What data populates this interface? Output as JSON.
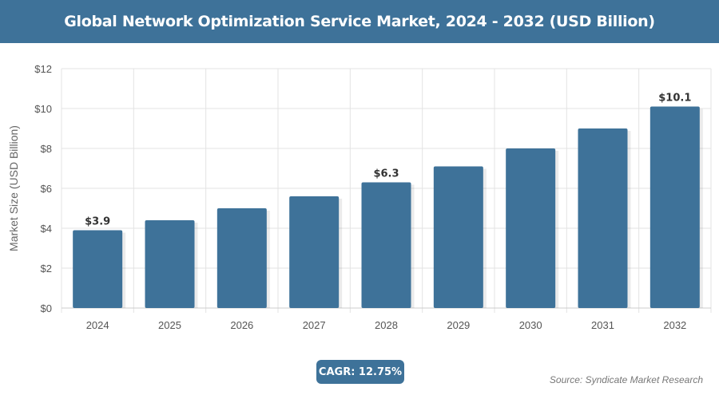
{
  "header": {
    "title": "Global Network Optimization Service Market, 2024 - 2032 (USD Billion)"
  },
  "chart_data": {
    "type": "bar",
    "title": "Global Network Optimization Service Market, 2024 - 2032 (USD Billion)",
    "xlabel": "",
    "ylabel": "Market Size (USD Billion)",
    "categories": [
      "2024",
      "2025",
      "2026",
      "2027",
      "2028",
      "2029",
      "2030",
      "2031",
      "2032"
    ],
    "values": [
      3.9,
      4.4,
      5.0,
      5.6,
      6.3,
      7.1,
      8.0,
      9.0,
      10.1
    ],
    "data_labels": {
      "0": "$3.9",
      "4": "$6.3",
      "8": "$10.1"
    },
    "ylim": [
      0,
      12
    ],
    "yticks": [
      "$0",
      "$2",
      "$4",
      "$6",
      "$8",
      "$10",
      "$12"
    ],
    "grid": true,
    "bar_color": "#3e7299"
  },
  "footer": {
    "cagr": "CAGR: 12.75%",
    "source": "Source: Syndicate Market Research"
  }
}
